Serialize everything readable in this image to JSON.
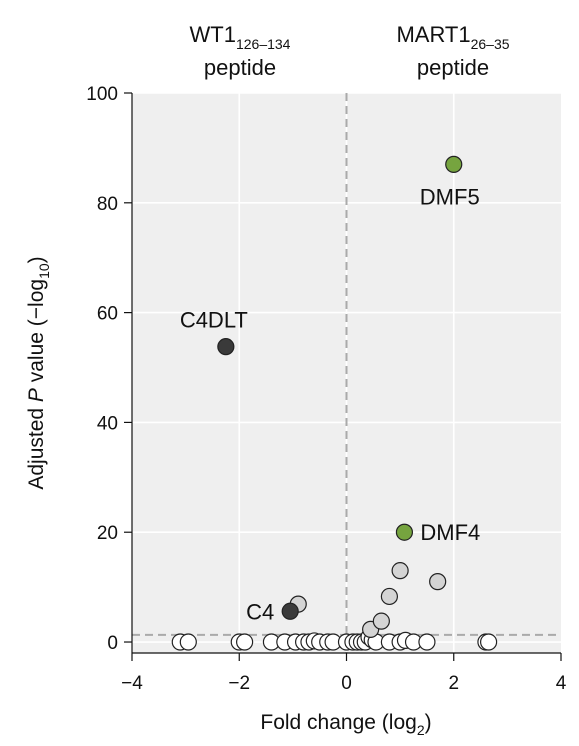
{
  "chart_data": {
    "type": "scatter",
    "title": "",
    "xlabel": "Fold change (log",
    "xlabel_sub": "2",
    "xlabel_tail": ")",
    "ylabel_pre": "Adjusted ",
    "ylabel_italic": "P",
    "ylabel_mid": " value (−log",
    "ylabel_sub": "10",
    "ylabel_tail": ")",
    "xlim": [
      -4,
      4
    ],
    "ylim": [
      -2,
      100
    ],
    "xticks": [
      -4,
      -2,
      0,
      2,
      4
    ],
    "xtick_labels": [
      "−4",
      "−2",
      "0",
      "2",
      "4"
    ],
    "yticks": [
      0,
      20,
      40,
      60,
      80,
      100
    ],
    "ytick_labels": [
      "0",
      "20",
      "40",
      "60",
      "80",
      "100"
    ],
    "grid": true,
    "vline_x": 0,
    "hline_y": 1.3,
    "column_headers": {
      "left": {
        "main": "WT1",
        "sub": "126–134",
        "line2": "peptide"
      },
      "right": {
        "main": "MART1",
        "sub": "26–35",
        "line2": "peptide"
      }
    },
    "colors": {
      "panel_bg": "#efefef",
      "not_significant": "#ffffff",
      "significant": "#d4d4d4",
      "mart1_highlight": "#76a43f",
      "wt1_highlight": "#3a3a3a",
      "threshold_line": "#aaaaaa"
    },
    "highlighted_points": [
      {
        "label": "DMF5",
        "x": 2.0,
        "y": 87,
        "group": "mart1_highlight"
      },
      {
        "label": "DMF4",
        "x": 1.08,
        "y": 20,
        "group": "mart1_highlight"
      },
      {
        "label": "C4DLT",
        "x": -2.25,
        "y": 53.8,
        "group": "wt1_highlight"
      },
      {
        "label": "C4",
        "x": -1.05,
        "y": 5.6,
        "group": "wt1_highlight"
      }
    ],
    "significant_points": [
      {
        "x": -0.9,
        "y": 6.9
      },
      {
        "x": 0.45,
        "y": 2.3
      },
      {
        "x": 0.65,
        "y": 3.8
      },
      {
        "x": 0.8,
        "y": 8.3
      },
      {
        "x": 1.0,
        "y": 13.0
      },
      {
        "x": 1.7,
        "y": 11.0
      }
    ],
    "nonsignificant_points": [
      {
        "x": -3.1,
        "y": 0
      },
      {
        "x": -2.95,
        "y": 0
      },
      {
        "x": -2.0,
        "y": 0
      },
      {
        "x": -1.9,
        "y": 0
      },
      {
        "x": -1.4,
        "y": 0
      },
      {
        "x": -1.15,
        "y": 0
      },
      {
        "x": -0.95,
        "y": 0
      },
      {
        "x": -0.8,
        "y": 0
      },
      {
        "x": -0.7,
        "y": 0
      },
      {
        "x": -0.6,
        "y": 0.2
      },
      {
        "x": -0.5,
        "y": 0
      },
      {
        "x": -0.35,
        "y": 0
      },
      {
        "x": -0.25,
        "y": 0
      },
      {
        "x": 0.0,
        "y": 0
      },
      {
        "x": 0.12,
        "y": 0
      },
      {
        "x": 0.2,
        "y": 0
      },
      {
        "x": 0.28,
        "y": 0
      },
      {
        "x": 0.35,
        "y": 0
      },
      {
        "x": 0.42,
        "y": 0.9
      },
      {
        "x": 0.48,
        "y": 0.4
      },
      {
        "x": 0.55,
        "y": 0
      },
      {
        "x": 0.8,
        "y": 0
      },
      {
        "x": 1.0,
        "y": 0
      },
      {
        "x": 1.1,
        "y": 0.3
      },
      {
        "x": 1.25,
        "y": 0
      },
      {
        "x": 1.5,
        "y": 0
      },
      {
        "x": 2.6,
        "y": 0
      },
      {
        "x": 2.65,
        "y": 0
      }
    ]
  }
}
